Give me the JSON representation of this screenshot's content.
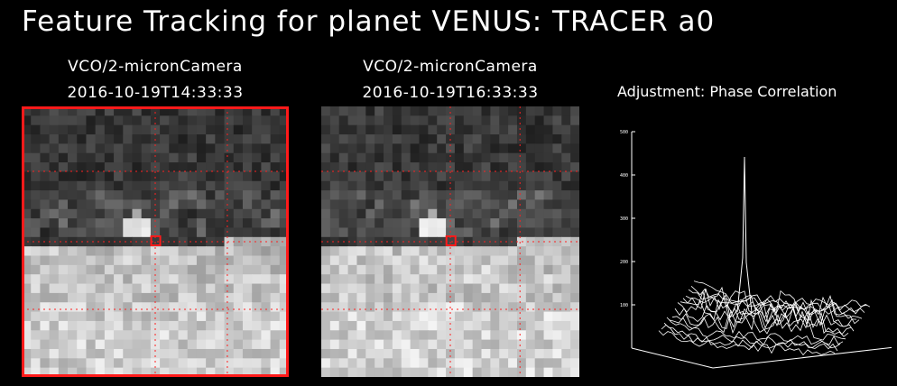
{
  "title": "Feature Tracking for planet VENUS: TRACER a0",
  "frames": [
    {
      "instrument": "VCO/2-micronCamera",
      "timestamp": "2016-10-19T14:33:33",
      "selected": true
    },
    {
      "instrument": "VCO/2-micronCamera",
      "timestamp": "2016-10-19T16:33:33",
      "selected": false
    }
  ],
  "adjustment": {
    "label": "Adjustment: Phase Correlation",
    "chart_data": {
      "type": "surface",
      "zlim": [
        0,
        500
      ],
      "z_tick_labels": [
        "100",
        "200",
        "300",
        "400",
        "500"
      ]
    }
  },
  "colors": {
    "background": "#000000",
    "text": "#ffffff",
    "selection": "#ff1a1a",
    "grid": "#ff2020"
  }
}
